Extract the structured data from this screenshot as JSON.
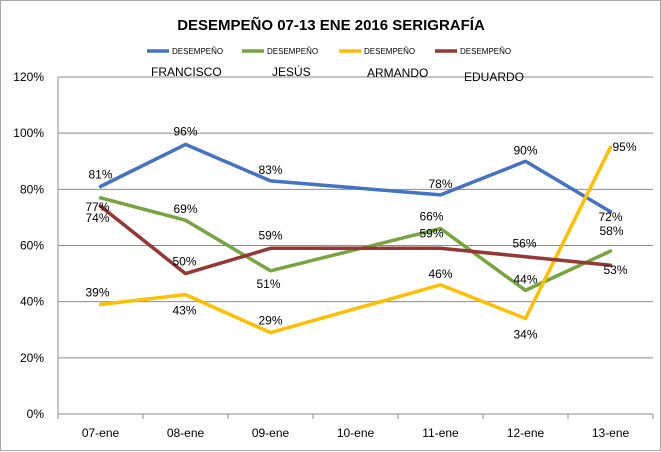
{
  "chart_data": {
    "type": "line",
    "title": "DESEMPEÑO 07-13 ENE 2016 SERIGRAFÍA",
    "categories": [
      "07-ene",
      "08-ene",
      "09-ene",
      "10-ene",
      "11-ene",
      "12-ene",
      "13-ene"
    ],
    "y_ticks": [
      "0%",
      "20%",
      "40%",
      "60%",
      "80%",
      "100%",
      "120%"
    ],
    "ylim": [
      0,
      120
    ],
    "grid": true,
    "legend_position": "top",
    "series": [
      {
        "name": "DESEMPEÑO",
        "person": "FRANCISCO",
        "color": "#4472c4",
        "values": [
          81,
          96,
          83,
          80.5,
          78,
          90,
          72
        ],
        "labels": [
          "81%",
          "96%",
          "83%",
          null,
          "78%",
          "90%",
          "72%"
        ]
      },
      {
        "name": "DESEMPEÑO",
        "person": "JESÚS",
        "color": "#77a43e",
        "values": [
          77,
          69,
          51,
          58.5,
          66,
          44,
          58
        ],
        "labels": [
          "77%",
          "69%",
          "51%",
          null,
          "66%",
          "44%",
          "58%"
        ]
      },
      {
        "name": "DESEMPEÑO",
        "person": "ARMANDO",
        "color": "#fdbf00",
        "values": [
          39,
          42.5,
          29,
          37.5,
          46,
          34,
          95
        ],
        "labels": [
          "39%",
          "43%",
          "29%",
          null,
          "46%",
          "34%",
          "95%"
        ]
      },
      {
        "name": "DESEMPEÑO",
        "person": "EDUARDO",
        "color": "#953735",
        "values": [
          74,
          50,
          59,
          59,
          59,
          56,
          53
        ],
        "labels": [
          "74%",
          "50%",
          "59%",
          null,
          "59%",
          "56%",
          "53%"
        ]
      }
    ]
  }
}
